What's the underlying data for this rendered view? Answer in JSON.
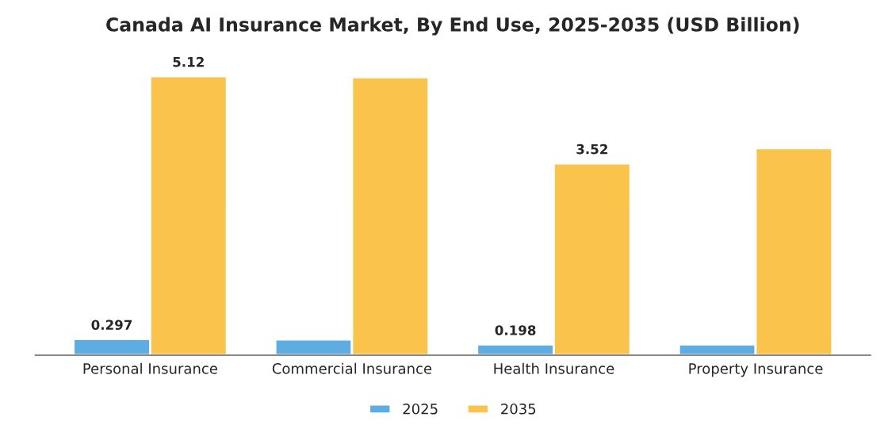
{
  "chart_data": {
    "type": "bar",
    "title": "Canada AI Insurance Market, By End Use, 2025-2035 (USD Billion)",
    "categories": [
      "Personal Insurance",
      "Commercial Insurance",
      "Health Insurance",
      "Property Insurance"
    ],
    "series": [
      {
        "name": "2025",
        "color": "#5dade2",
        "values": [
          0.297,
          0.29,
          0.198,
          0.2
        ],
        "value_labels": [
          "0.297",
          null,
          "0.198",
          null
        ]
      },
      {
        "name": "2035",
        "color": "#f9c34c",
        "values": [
          5.12,
          5.1,
          3.52,
          3.8
        ],
        "value_labels": [
          "5.12",
          null,
          "3.52",
          null
        ]
      }
    ],
    "legend": "bottom",
    "grid": false
  }
}
